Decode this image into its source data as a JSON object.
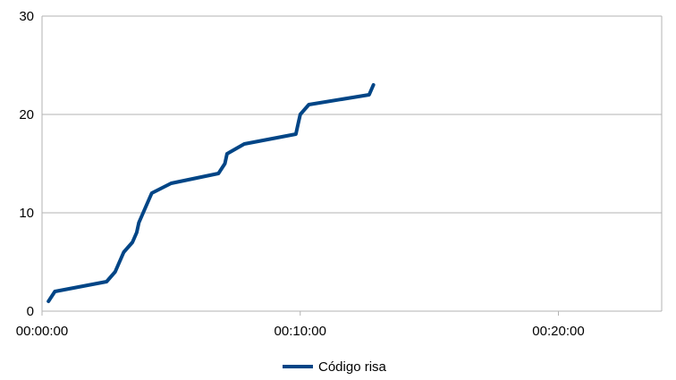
{
  "chart_data": {
    "type": "line",
    "x_unit": "time hh:mm:ss",
    "y_ticks": [
      "0",
      "10",
      "20",
      "30"
    ],
    "x_ticks": [
      "00:00:00",
      "00:10:00",
      "00:20:00"
    ],
    "ylim": [
      0,
      30
    ],
    "xlim": [
      "00:00:00",
      "00:24:00"
    ],
    "grid": "horizontal",
    "legend_position": "bottom",
    "series": [
      {
        "name": "Código risa",
        "color": "#004586",
        "points": [
          [
            "00:00:15",
            1
          ],
          [
            "00:00:30",
            2
          ],
          [
            "00:02:30",
            3
          ],
          [
            "00:02:50",
            4
          ],
          [
            "00:03:10",
            6
          ],
          [
            "00:03:30",
            7
          ],
          [
            "00:03:40",
            8
          ],
          [
            "00:03:45",
            9
          ],
          [
            "00:03:55",
            10
          ],
          [
            "00:04:05",
            11
          ],
          [
            "00:04:15",
            12
          ],
          [
            "00:05:00",
            13
          ],
          [
            "00:06:50",
            14
          ],
          [
            "00:07:05",
            15
          ],
          [
            "00:07:10",
            16
          ],
          [
            "00:07:50",
            17
          ],
          [
            "00:09:50",
            18
          ],
          [
            "00:09:55",
            19
          ],
          [
            "00:10:00",
            20
          ],
          [
            "00:10:20",
            21
          ],
          [
            "00:12:40",
            22
          ],
          [
            "00:12:50",
            23
          ]
        ]
      }
    ]
  }
}
